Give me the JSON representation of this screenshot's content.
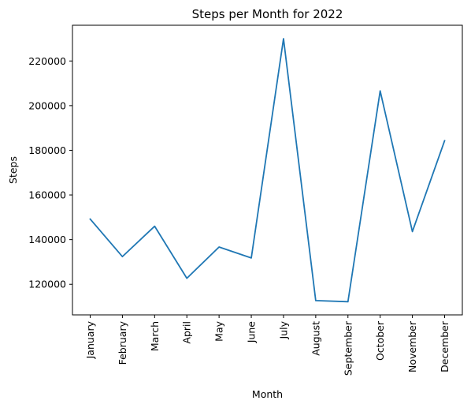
{
  "chart_data": {
    "type": "line",
    "title": "Steps per Month for 2022",
    "xlabel": "Month",
    "ylabel": "Steps",
    "categories": [
      "January",
      "February",
      "March",
      "April",
      "May",
      "June",
      "July",
      "August",
      "September",
      "October",
      "November",
      "December"
    ],
    "series": [
      {
        "values": [
          149200,
          132400,
          146000,
          122700,
          136700,
          131800,
          230000,
          112700,
          112200,
          206600,
          143600,
          184300
        ],
        "color": "#1f77b4"
      }
    ],
    "y_ticks": [
      120000,
      140000,
      160000,
      180000,
      200000,
      220000
    ],
    "y_tick_labels": [
      "120000",
      "140000",
      "160000",
      "180000",
      "200000",
      "220000"
    ],
    "ylim": [
      106300,
      236000
    ],
    "grid": false,
    "legend": "none"
  }
}
